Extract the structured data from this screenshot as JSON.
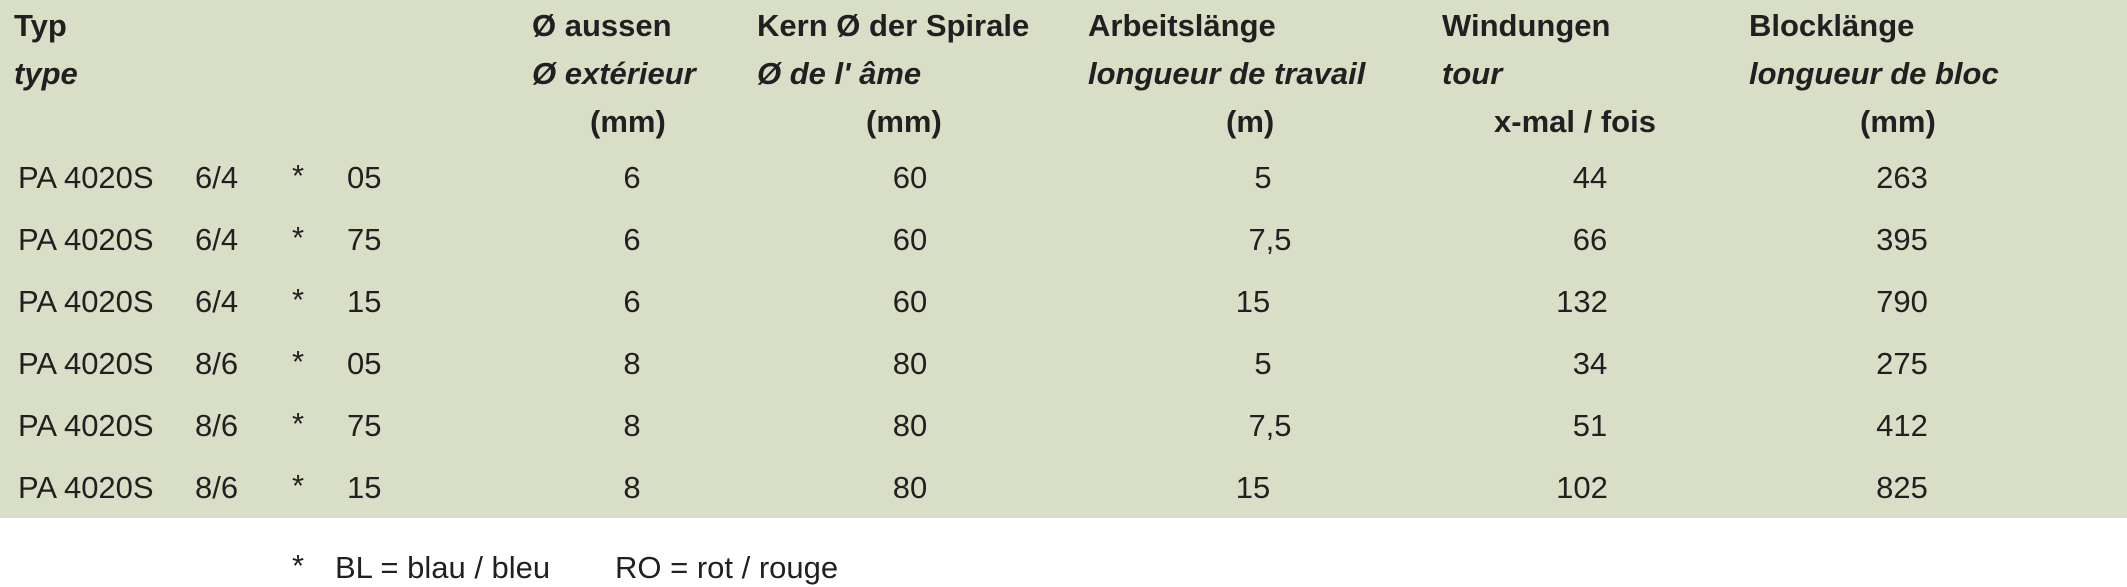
{
  "headers": [
    {
      "de": "Typ",
      "fr": "type",
      "unit": ""
    },
    {
      "de": "Ø aussen",
      "fr": "Ø extérieur",
      "unit": "(mm)"
    },
    {
      "de": "Kern Ø der Spirale",
      "fr": "Ø de l' âme",
      "unit": "(mm)"
    },
    {
      "de": "Arbeitslänge",
      "fr": "longueur de travail",
      "unit": "(m)"
    },
    {
      "de": "Windungen",
      "fr": "tour",
      "unit": "x-mal / fois"
    },
    {
      "de": "Blocklänge",
      "fr": "longueur de bloc",
      "unit": "(mm)"
    }
  ],
  "rows": [
    {
      "model": "PA 4020S",
      "size": "6/4",
      "star": "*",
      "code": "05",
      "outer": "6",
      "core": "60",
      "length": "5",
      "turns": "44",
      "block": "263"
    },
    {
      "model": "PA 4020S",
      "size": "6/4",
      "star": "*",
      "code": "75",
      "outer": "6",
      "core": "60",
      "length": "7,5",
      "turns": "66",
      "block": "395"
    },
    {
      "model": "PA 4020S",
      "size": "6/4",
      "star": "*",
      "code": "15",
      "outer": "6",
      "core": "60",
      "length": "15",
      "turns": "132",
      "block": "790"
    },
    {
      "model": "PA 4020S",
      "size": "8/6",
      "star": "*",
      "code": "05",
      "outer": "8",
      "core": "80",
      "length": "5",
      "turns": "34",
      "block": "275"
    },
    {
      "model": "PA 4020S",
      "size": "8/6",
      "star": "*",
      "code": "75",
      "outer": "8",
      "core": "80",
      "length": "7,5",
      "turns": "51",
      "block": "412"
    },
    {
      "model": "PA 4020S",
      "size": "8/6",
      "star": "*",
      "code": "15",
      "outer": "8",
      "core": "80",
      "length": "15",
      "turns": "102",
      "block": "825"
    }
  ],
  "footnote": {
    "star": "*",
    "bl": "BL = blau / bleu",
    "ro": "RO = rot / rouge"
  }
}
